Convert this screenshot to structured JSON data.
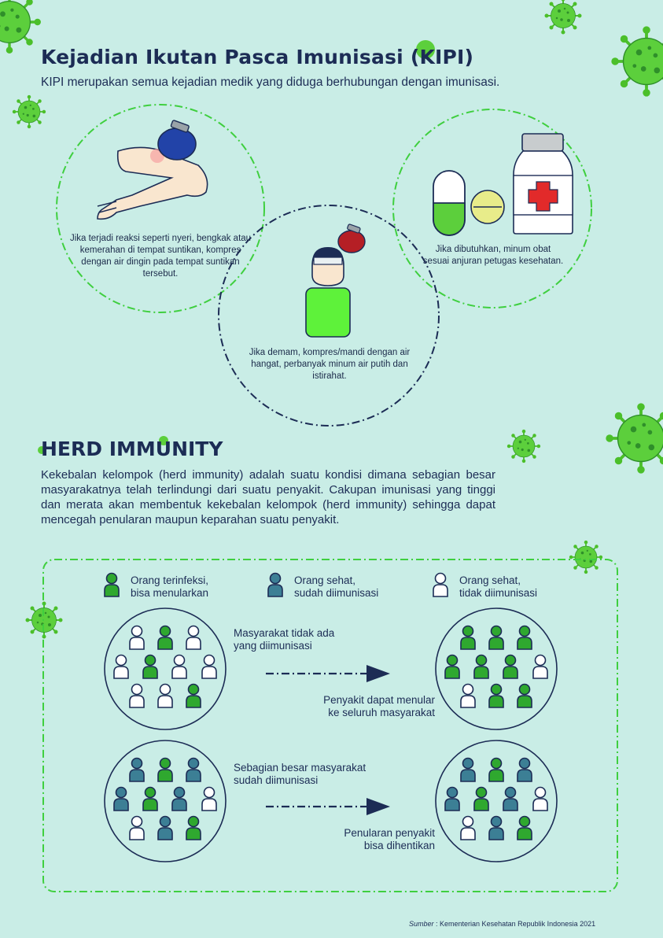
{
  "kipi": {
    "title": "Kejadian Ikutan Pasca Imunisasi (KIPI)",
    "subtitle": "KIPI merupakan semua kejadian medik yang diduga berhubungan dengan imunisasi.",
    "tips": [
      {
        "text": "Jika terjadi reaksi seperti nyeri, bengkak atau kemerahan di tempat suntikan, kompres dengan air dingin pada tempat suntikan tersebut."
      },
      {
        "text": "Jika demam, kompres/mandi dengan air hangat, perbanyak minum air putih dan istirahat."
      },
      {
        "text": "Jika dibutuhkan, minum obat sesuai anjuran petugas kesehatan."
      }
    ]
  },
  "herd": {
    "title": "HERD IMMUNITY",
    "description": "Kekebalan kelompok (herd immunity) adalah suatu kondisi dimana sebagian besar masyarakatnya telah terlindungi dari suatu penyakit. Cakupan imunisasi yang tinggi dan merata akan membentuk kekebalan kelompok (herd immunity) sehingga dapat mencegah penularan maupun keparahan suatu penyakit.",
    "legend": [
      {
        "line1": "Orang terinfeksi,",
        "line2": "bisa menularkan",
        "color": "#2fa82f"
      },
      {
        "line1": "Orang sehat,",
        "line2": "sudah diimunisasi",
        "color": "#3c7f95"
      },
      {
        "line1": "Orang sehat,",
        "line2": "tidak diimunisasi",
        "color": "#ffffff"
      }
    ],
    "scenarios": [
      {
        "top_line1": "Masyarakat tidak ada",
        "top_line2": "yang diimunisasi",
        "bottom_line1": "Penyakit dapat menular",
        "bottom_line2": "ke seluruh masyarakat"
      },
      {
        "top_line1": "Sebagian besar masyarakat",
        "top_line2": "sudah diimunisasi",
        "bottom_line1": "Penularan penyakit",
        "bottom_line2": "bisa dihentikan"
      }
    ]
  },
  "source": {
    "label": "Sumber",
    "text": ": Kementerian Kesehatan Republik Indonesia 2021"
  },
  "colors": {
    "background": "#c9ede6",
    "navy": "#1c2c55",
    "green": "#2fa82f",
    "virus": "#5ccf3c",
    "immunized": "#3c7f95"
  }
}
